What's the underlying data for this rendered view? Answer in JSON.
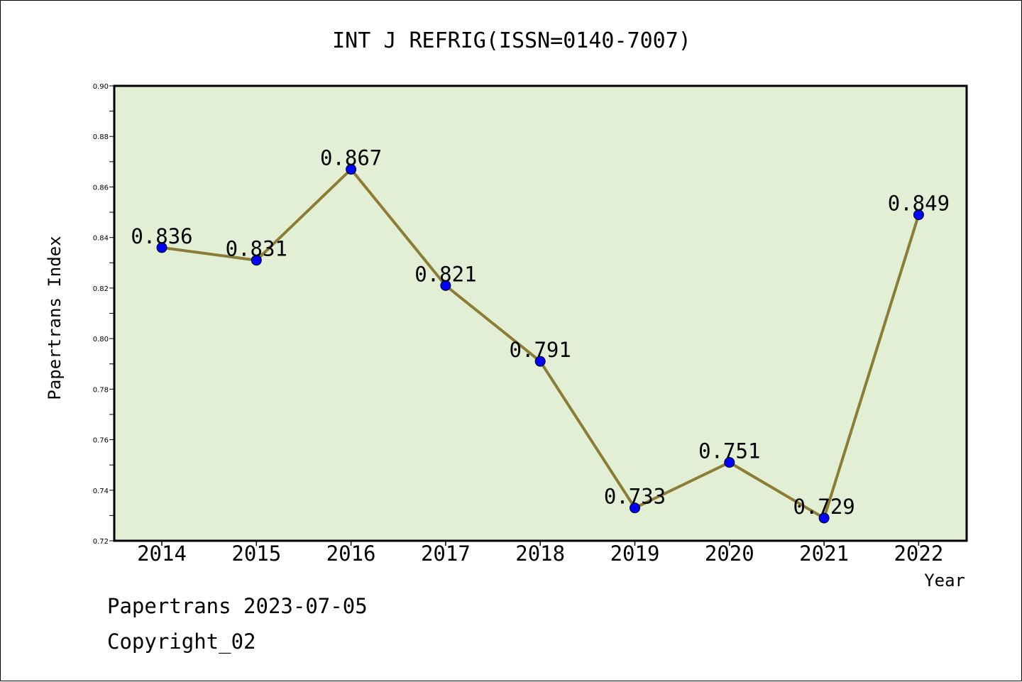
{
  "chart_data": {
    "type": "line",
    "title": "INT J REFRIG(ISSN=0140-7007)",
    "xlabel": "Year",
    "ylabel": "Papertrans Index",
    "categories": [
      "2014",
      "2015",
      "2016",
      "2017",
      "2018",
      "2019",
      "2020",
      "2021",
      "2022"
    ],
    "values": [
      0.836,
      0.831,
      0.867,
      0.821,
      0.791,
      0.733,
      0.751,
      0.729,
      0.849
    ],
    "data_labels": [
      "0.836",
      "0.831",
      "0.867",
      "0.821",
      "0.791",
      "0.733",
      "0.751",
      "0.729",
      "0.849"
    ],
    "ylim": [
      0.72,
      0.9
    ],
    "yticks": [
      0.72,
      0.74,
      0.76,
      0.78,
      0.8,
      0.82,
      0.84,
      0.86,
      0.88,
      0.9
    ],
    "ytick_labels": [
      "0.72",
      "0.74",
      "0.76",
      "0.78",
      "0.80",
      "0.82",
      "0.84",
      "0.86",
      "0.88",
      "0.90"
    ],
    "grid": false,
    "colors": {
      "plot_background": "#e2efd5",
      "line": "#8b7d35",
      "marker": "#0000ff",
      "axes": "#000000"
    }
  },
  "footer": {
    "line1": "Papertrans 2023-07-05",
    "line2": "Copyright_02"
  }
}
